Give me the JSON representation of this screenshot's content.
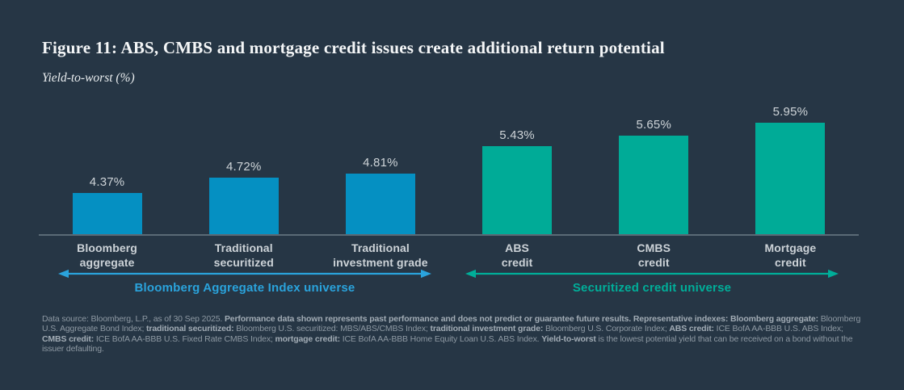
{
  "header": {
    "title": "Figure 11: ABS, CMBS and mortgage credit issues create additional return potential",
    "subtitle": "Yield-to-worst (%)"
  },
  "chart_data": {
    "type": "bar",
    "title": "Figure 11: ABS, CMBS and mortgage credit issues create additional return potential",
    "ylabel": "Yield-to-worst (%)",
    "categories": [
      "Bloomberg\naggregate",
      "Traditional\nsecuritized",
      "Traditional\ninvestment grade",
      "ABS\ncredit",
      "CMBS\ncredit",
      "Mortgage\ncredit"
    ],
    "values": [
      4.37,
      4.72,
      4.81,
      5.43,
      5.65,
      5.95
    ],
    "value_labels": [
      "4.37%",
      "4.72%",
      "4.81%",
      "5.43%",
      "5.65%",
      "5.95%"
    ],
    "unit": "%",
    "ylim": [
      3.44,
      6.2
    ],
    "grid": false,
    "legend": "none",
    "groups": [
      {
        "label": "Bloomberg Aggregate Index universe",
        "bar_color": "#0590c2",
        "accent_color": "#2aa3dc",
        "bar_indices": [
          0,
          1,
          2
        ]
      },
      {
        "label": "Securitized credit universe",
        "bar_color": "#00ab97",
        "accent_color": "#00ae99",
        "bar_indices": [
          3,
          4,
          5
        ]
      }
    ]
  },
  "colors": {
    "background": "#263645",
    "axis_line": "#5a6a76",
    "value_label": "#ced4d8",
    "category_label": "#ccd2d7",
    "footnote": "#8e99a3"
  },
  "footnote": {
    "segments": [
      {
        "b": false,
        "t": "Data source: Bloomberg, L.P., as of 30 Sep 2025. "
      },
      {
        "b": true,
        "t": "Performance data shown represents past performance and does not predict or guarantee future results. Representative indexes: Bloomberg aggregate:"
      },
      {
        "b": false,
        "t": " Bloomberg U.S. Aggregate Bond Index; "
      },
      {
        "b": true,
        "t": "traditional securitized:"
      },
      {
        "b": false,
        "t": " Bloomberg U.S. securitized: MBS/ABS/CMBS Index; "
      },
      {
        "b": true,
        "t": "traditional investment grade:"
      },
      {
        "b": false,
        "t": " Bloomberg U.S. Corporate Index; "
      },
      {
        "b": true,
        "t": "ABS credit:"
      },
      {
        "b": false,
        "t": " ICE BofA AA-BBB U.S. ABS Index; "
      },
      {
        "b": true,
        "t": "CMBS credit:"
      },
      {
        "b": false,
        "t": " ICE BofA AA-BBB U.S. Fixed Rate CMBS Index; "
      },
      {
        "b": true,
        "t": "mortgage credit:"
      },
      {
        "b": false,
        "t": " ICE BofA AA-BBB Home Equity Loan U.S. ABS Index. "
      },
      {
        "b": true,
        "t": "Yield-to-worst"
      },
      {
        "b": false,
        "t": " is the lowest potential yield that can be received on a bond without the issuer defaulting."
      }
    ]
  }
}
